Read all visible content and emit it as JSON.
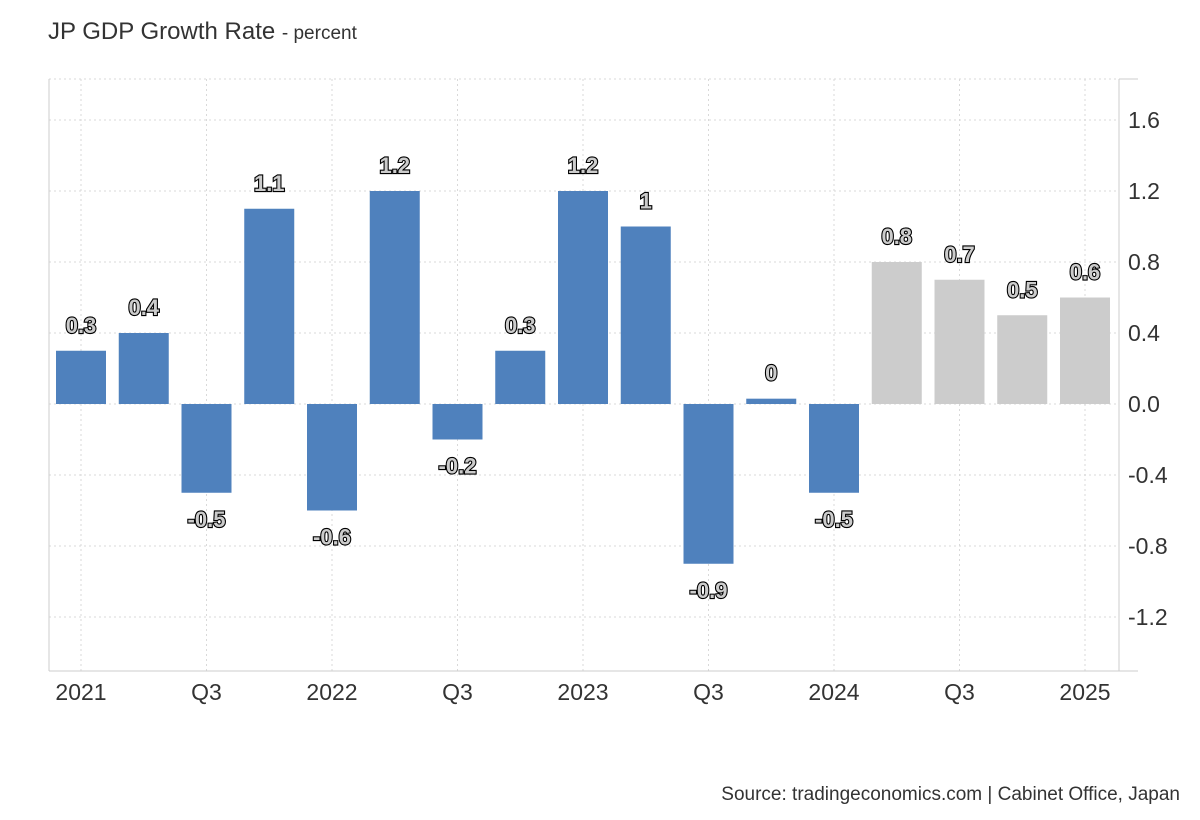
{
  "header": {
    "title": "JP GDP Growth Rate",
    "subtitle": "- percent"
  },
  "footer": {
    "source": "Source: tradingeconomics.com | Cabinet Office, Japan"
  },
  "colors": {
    "actual": "#4f81bd",
    "forecast": "#cccccc"
  },
  "chart_data": {
    "type": "bar",
    "title": "JP GDP Growth Rate",
    "ylabel": "percent",
    "ylim": [
      -1.5,
      1.8
    ],
    "yticks": [
      1.6,
      1.2,
      0.8,
      0.4,
      0.0,
      -0.4,
      -0.8,
      -1.2
    ],
    "ytick_labels": [
      "1.6",
      "1.2",
      "0.8",
      "0.4",
      "0.0",
      "-0.4",
      "-0.8",
      "-1.2"
    ],
    "y_axis_side": "right",
    "grid": true,
    "xtick_labels": [
      "2021",
      "Q3",
      "2022",
      "Q3",
      "2023",
      "Q3",
      "2024",
      "Q3",
      "2025"
    ],
    "categories": [
      "2021 Q1",
      "2021 Q2",
      "2021 Q3",
      "2021 Q4",
      "2022 Q1",
      "2022 Q2",
      "2022 Q3",
      "2022 Q4",
      "2023 Q1",
      "2023 Q2",
      "2023 Q3",
      "2023 Q4",
      "2024 Q1",
      "2024 Q2",
      "2024 Q3",
      "2024 Q4",
      "2025 Q1"
    ],
    "values": [
      0.3,
      0.4,
      -0.5,
      1.1,
      -0.6,
      1.2,
      -0.2,
      0.3,
      1.2,
      1.0,
      -0.9,
      0.03,
      -0.5,
      0.8,
      0.7,
      0.5,
      0.6
    ],
    "labels": [
      "0.3",
      "0.4",
      "-0.5",
      "1.1",
      "-0.6",
      "1.2",
      "-0.2",
      "0.3",
      "1.2",
      "1",
      "-0.9",
      "0",
      "-0.5",
      "0.8",
      "0.7",
      "0.5",
      "0.6"
    ],
    "forecast_from_index": 13
  }
}
